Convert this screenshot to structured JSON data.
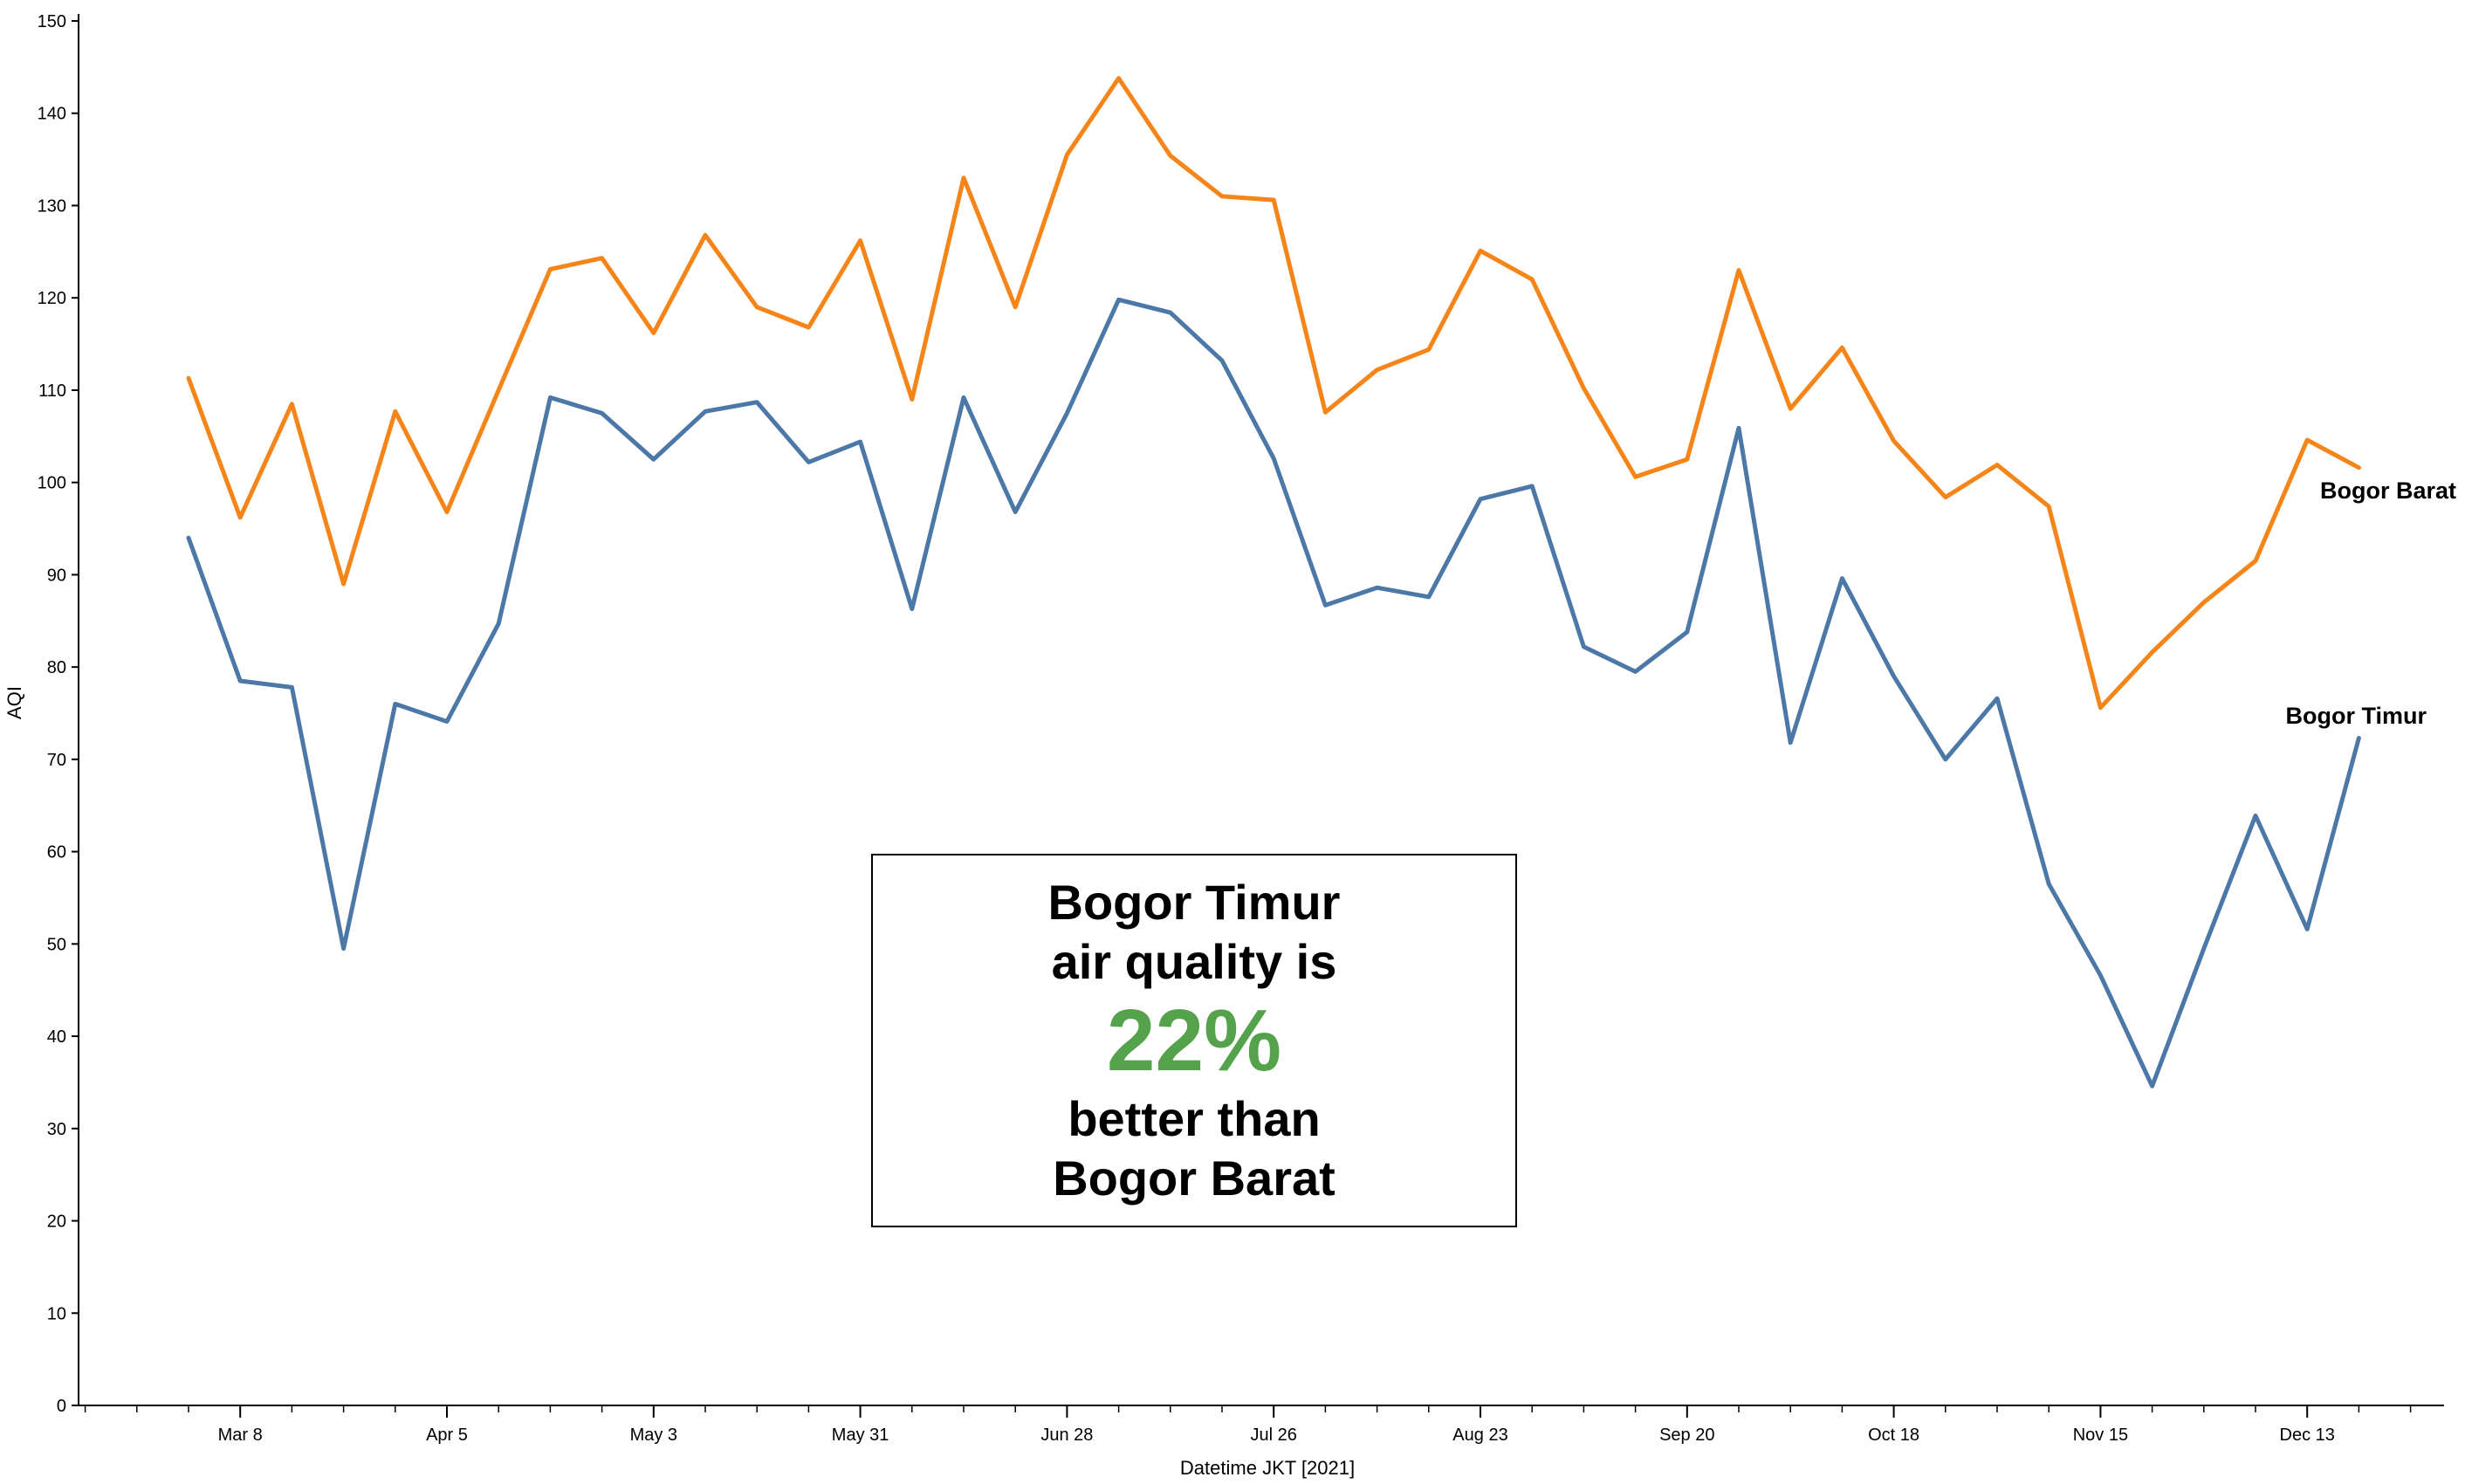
{
  "chart_data": {
    "type": "line",
    "xlabel": "Datetime JKT [2021]",
    "ylabel": "AQI",
    "ylim": [
      0,
      150
    ],
    "y_ticks": [
      0,
      10,
      20,
      30,
      40,
      50,
      60,
      70,
      80,
      90,
      100,
      110,
      120,
      130,
      140,
      150
    ],
    "x_tick_labels": [
      "Mar 8",
      "Apr 5",
      "May 3",
      "May 31",
      "Jun 28",
      "Jul 26",
      "Aug 23",
      "Sep 20",
      "Oct 18",
      "Nov 15",
      "Dec 13"
    ],
    "x": [
      "2021-03-01",
      "2021-03-08",
      "2021-03-15",
      "2021-03-22",
      "2021-03-29",
      "2021-04-05",
      "2021-04-12",
      "2021-04-19",
      "2021-04-26",
      "2021-05-03",
      "2021-05-10",
      "2021-05-17",
      "2021-05-24",
      "2021-05-31",
      "2021-06-07",
      "2021-06-14",
      "2021-06-21",
      "2021-06-28",
      "2021-07-05",
      "2021-07-12",
      "2021-07-19",
      "2021-07-26",
      "2021-08-02",
      "2021-08-09",
      "2021-08-16",
      "2021-08-23",
      "2021-08-30",
      "2021-09-06",
      "2021-09-13",
      "2021-09-20",
      "2021-09-27",
      "2021-10-04",
      "2021-10-11",
      "2021-10-18",
      "2021-10-25",
      "2021-11-01",
      "2021-11-08",
      "2021-11-15",
      "2021-11-22",
      "2021-11-29",
      "2021-12-06",
      "2021-12-13",
      "2021-12-20"
    ],
    "series": [
      {
        "name": "Bogor Barat",
        "color": "#f58518",
        "values": [
          111.3,
          96.2,
          108.5,
          89.0,
          107.7,
          96.8,
          110.0,
          123.1,
          124.3,
          116.2,
          126.8,
          119.0,
          116.8,
          126.2,
          109.0,
          133.0,
          119.0,
          135.5,
          143.8,
          135.4,
          131.0,
          130.6,
          107.6,
          112.2,
          114.4,
          125.1,
          122.0,
          110.2,
          100.6,
          102.5,
          123.0,
          108.0,
          114.6,
          104.5,
          98.4,
          101.9,
          97.4,
          75.6,
          81.6,
          87.0,
          91.5,
          104.6,
          101.6
        ]
      },
      {
        "name": "Bogor Timur",
        "color": "#4c78a8",
        "values": [
          94.0,
          78.5,
          77.8,
          49.5,
          76.0,
          74.1,
          84.7,
          109.2,
          107.5,
          102.5,
          107.7,
          108.7,
          102.2,
          104.4,
          86.3,
          109.2,
          96.8,
          107.5,
          119.8,
          118.4,
          113.2,
          102.6,
          86.7,
          88.6,
          87.6,
          98.2,
          99.6,
          82.2,
          79.5,
          83.8,
          105.9,
          71.8,
          89.6,
          79.0,
          70.0,
          76.6,
          56.5,
          46.6,
          34.6,
          49.5,
          63.9,
          51.6,
          72.3
        ]
      }
    ]
  },
  "labels": {
    "series_1": "Bogor Barat",
    "series_2": "Bogor Timur"
  },
  "callout": {
    "line1": "Bogor Timur",
    "line2": "air quality is",
    "percent": "22%",
    "line3": "better than",
    "line4": "Bogor Barat",
    "percent_color": "#54a24b"
  }
}
